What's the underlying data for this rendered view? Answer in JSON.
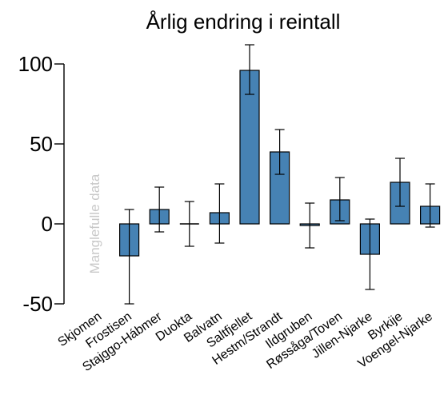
{
  "chart_data": {
    "type": "bar",
    "title": "Årlig endring i reintall",
    "xlabel": "",
    "ylabel": "",
    "ylim": [
      -50,
      115
    ],
    "yticks": [
      -50,
      0,
      50,
      100
    ],
    "ytick_labels": [
      "-50",
      "0",
      "50",
      "100"
    ],
    "categories": [
      "Skjomen",
      "Frostisen",
      "Stajggo-Hábmer",
      "Duokta",
      "Balvatn",
      "Saltfjellet",
      "Hestm/Strandt",
      "Ildgruben",
      "Røssåga/Toven",
      "Jillen-Njarke",
      "Byrkije",
      "Voengel-Njarke"
    ],
    "values": [
      null,
      -20,
      9,
      0,
      7,
      96,
      45,
      -1,
      15,
      -19,
      26,
      11
    ],
    "error_low": [
      null,
      -50,
      -5,
      -14,
      -12,
      81,
      31,
      -15,
      2,
      -41,
      11,
      -2
    ],
    "error_high": [
      null,
      9,
      23,
      14,
      25,
      112,
      59,
      13,
      29,
      3,
      41,
      25
    ],
    "bar_color": "#4682b4",
    "annotations": [
      {
        "category": "Skjomen",
        "text": "Manglefulle data",
        "color": "#c8c8c8"
      }
    ]
  }
}
